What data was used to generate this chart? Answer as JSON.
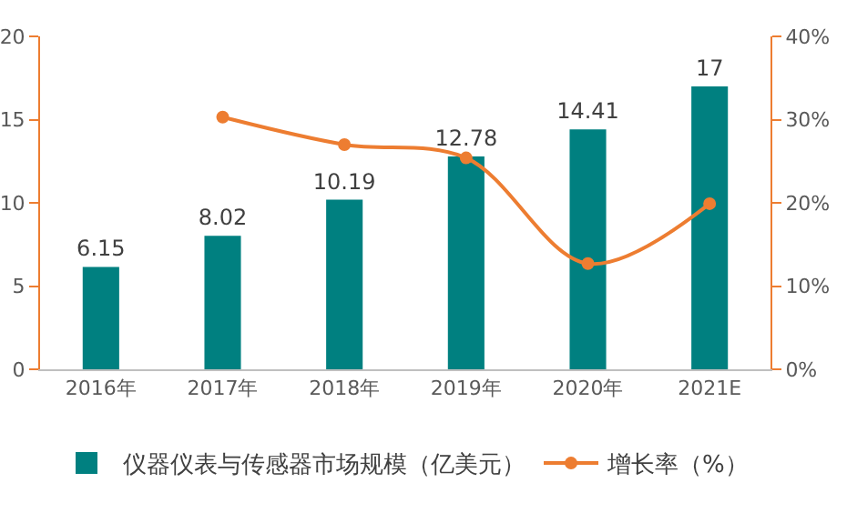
{
  "chart_data": {
    "type": "bar",
    "categories": [
      "2016年",
      "2017年",
      "2018年",
      "2019年",
      "2020年",
      "2021E"
    ],
    "series": [
      {
        "name": "仪器仪表与传感器市场规模（亿美元）",
        "color": "#008080",
        "values": [
          6.15,
          8.02,
          10.19,
          12.78,
          14.41,
          17
        ],
        "value_labels": [
          "6.15",
          "8.02",
          "10.19",
          "12.78",
          "14.41",
          "17"
        ]
      },
      {
        "name": "增长率（%）",
        "type": "line",
        "axis": "y2",
        "color": "#ed7d31",
        "values": [
          null,
          30.3,
          27.0,
          25.4,
          12.7,
          19.9
        ]
      }
    ],
    "ylim": [
      0,
      20
    ],
    "yticks": [
      0,
      5,
      10,
      15,
      20
    ],
    "y2lim": [
      0,
      40
    ],
    "y2ticks": [
      {
        "value": 0,
        "label": "0%"
      },
      {
        "value": 10,
        "label": "10%"
      },
      {
        "value": 20,
        "label": "20%"
      },
      {
        "value": 30,
        "label": "30%"
      },
      {
        "value": 40,
        "label": "40%"
      }
    ],
    "grid": false,
    "legend": "bottom",
    "marker": "circle",
    "line_style": "solid"
  }
}
